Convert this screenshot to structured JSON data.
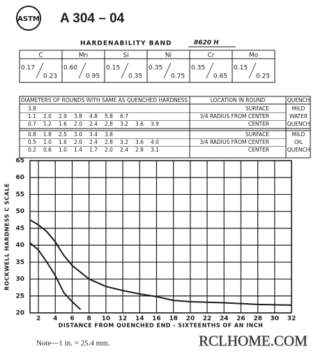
{
  "header": {
    "logo": "ASTM",
    "designation": "A 304 – 04"
  },
  "band": {
    "title": "HARDENABILITY BAND",
    "grade": "8620 H"
  },
  "composition": {
    "elements": [
      "C",
      "Mn",
      "Si",
      "Ni",
      "Cr",
      "Mo"
    ],
    "min": [
      "0.17",
      "0.60",
      "0.15",
      "0.35",
      "0.35",
      "0.15"
    ],
    "max": [
      "0.23",
      "0.95",
      "0.35",
      "0.75",
      "0.65",
      "0.25"
    ]
  },
  "quench_table": {
    "headers": [
      "DIAMETERS OF ROUNDS WITH SAME AS QUENCHED HARDNESS",
      "LOCATION IN ROUND",
      "QUENCH"
    ],
    "groups": [
      {
        "quench": [
          "MILD",
          "WATER",
          "QUENCH"
        ],
        "rows": [
          {
            "diameters": [
              "3.8"
            ],
            "location": "SURFACE"
          },
          {
            "diameters": [
              "1.1",
              "2.0",
              "2.9",
              "3.8",
              "4.8",
              "5.8",
              "6.7"
            ],
            "location": "3/4 RADIUS FROM CENTER"
          },
          {
            "diameters": [
              "0.7",
              "1.2",
              "1.6",
              "2.0",
              "2.4",
              "2.8",
              "3.2",
              "3.6",
              "3.9"
            ],
            "location": "CENTER"
          }
        ]
      },
      {
        "quench": [
          "MILD",
          "OIL",
          "QUENCH"
        ],
        "rows": [
          {
            "diameters": [
              "0.8",
              "1.8",
              "2.5",
              "3.0",
              "3.4",
              "3.8"
            ],
            "location": "SURFACE"
          },
          {
            "diameters": [
              "0.5",
              "1.0",
              "1.6",
              "2.0",
              "2.4",
              "2.8",
              "3.2",
              "3.6",
              "4.0"
            ],
            "location": "3/4 RADIUS FROM CENTER"
          },
          {
            "diameters": [
              "0.2",
              "0.6",
              "1.0",
              "1.4",
              "1.7",
              "2.0",
              "2.4",
              "2.8",
              "3.1"
            ],
            "location": "CENTER"
          }
        ]
      }
    ]
  },
  "chart_data": {
    "type": "line",
    "xlabel": "DISTANCE FROM QUENCHED END - SIXTEENTHS OF AN INCH",
    "ylabel": "ROCKWELL HARDNESS C SCALE",
    "xlim": [
      1,
      32
    ],
    "ylim": [
      20,
      65
    ],
    "xticks": [
      2,
      4,
      6,
      8,
      10,
      12,
      14,
      16,
      18,
      20,
      22,
      24,
      26,
      28,
      30,
      32
    ],
    "yticks": [
      20,
      25,
      30,
      35,
      40,
      45,
      50,
      55,
      60,
      65
    ],
    "grid": true,
    "series": [
      {
        "color": "#1a1a1a",
        "x": [
          1,
          2,
          3,
          4,
          5,
          6,
          8,
          10,
          12,
          14,
          16,
          18,
          20,
          24,
          28,
          32
        ],
        "values": [
          47.5,
          46,
          44,
          41,
          37,
          34,
          30,
          27.8,
          26.6,
          25.6,
          24.8,
          23.7,
          23.3,
          23,
          22.5,
          22.3
        ]
      },
      {
        "color": "#1a1a1a",
        "x": [
          1,
          2,
          3,
          4,
          5,
          6,
          7
        ],
        "values": [
          40.7,
          38.6,
          35,
          31,
          26,
          23.3,
          21
        ]
      }
    ]
  },
  "note": "Note—1 in. = 25.4 mm.",
  "watermark": "RCLHOME.COM"
}
